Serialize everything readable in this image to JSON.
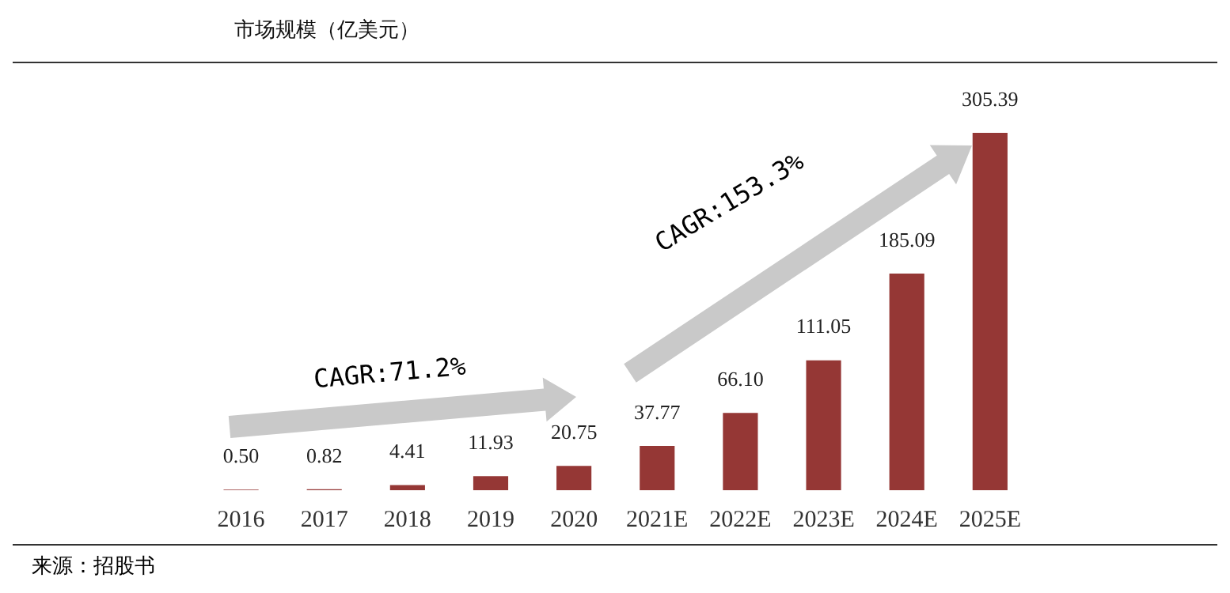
{
  "chart_data": {
    "type": "bar",
    "title": "市场规模（亿美元）",
    "categories": [
      "2016",
      "2017",
      "2018",
      "2019",
      "2020",
      "2021E",
      "2022E",
      "2023E",
      "2024E",
      "2025E"
    ],
    "values": [
      0.5,
      0.82,
      4.41,
      11.93,
      20.75,
      37.77,
      66.1,
      111.05,
      185.09,
      305.39
    ],
    "value_labels": [
      "0.50",
      "0.82",
      "4.41",
      "11.93",
      "20.75",
      "37.77",
      "66.10",
      "111.05",
      "185.09",
      "305.39"
    ],
    "color": "#953735",
    "tick_labels": "x",
    "grid": false,
    "legend": false,
    "annotations": [
      "CAGR:71.2%",
      "CAGR:153.3%",
      "来源：招股书"
    ]
  }
}
